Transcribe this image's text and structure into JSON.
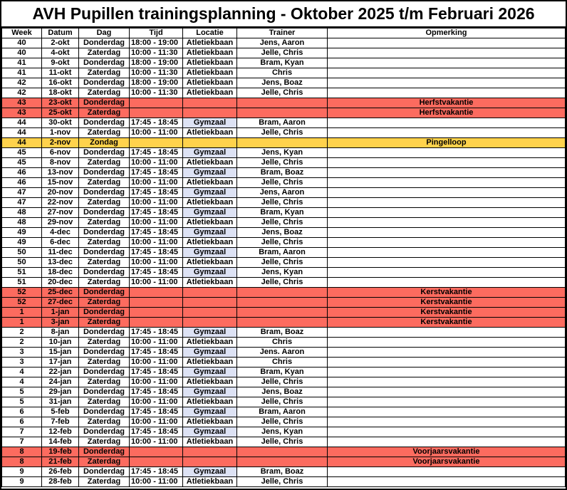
{
  "title": "AVH Pupillen trainingsplanning - Oktober 2025 t/m Februari 2026",
  "columns": [
    "Week",
    "Datum",
    "Dag",
    "Tijd",
    "Locatie",
    "Trainer",
    "Opmerking"
  ],
  "colors": {
    "vacation_red": "#FC6B5F",
    "event_yellow": "#FFD24C",
    "gymzaal_highlight": "#DDE2F4",
    "grid_border": "#000000"
  },
  "rows": [
    {
      "week": "40",
      "datum": "2-okt",
      "dag": "Donderdag",
      "tijd": "18:00 - 19:00",
      "locatie": "Atletiekbaan",
      "trainer": "Jens, Aaron",
      "opmerking": "",
      "type": "normal"
    },
    {
      "week": "40",
      "datum": "4-okt",
      "dag": "Zaterdag",
      "tijd": "10:00 - 11:30",
      "locatie": "Atletiekbaan",
      "trainer": "Jelle, Chris",
      "opmerking": "",
      "type": "normal"
    },
    {
      "week": "41",
      "datum": "9-okt",
      "dag": "Donderdag",
      "tijd": "18:00 - 19:00",
      "locatie": "Atletiekbaan",
      "trainer": "Bram, Kyan",
      "opmerking": "",
      "type": "normal"
    },
    {
      "week": "41",
      "datum": "11-okt",
      "dag": "Zaterdag",
      "tijd": "10:00 - 11:30",
      "locatie": "Atletiekbaan",
      "trainer": "Chris",
      "opmerking": "",
      "type": "normal"
    },
    {
      "week": "42",
      "datum": "16-okt",
      "dag": "Donderdag",
      "tijd": "18:00 - 19:00",
      "locatie": "Atletiekbaan",
      "trainer": "Jens, Boaz",
      "opmerking": "",
      "type": "normal"
    },
    {
      "week": "42",
      "datum": "18-okt",
      "dag": "Zaterdag",
      "tijd": "10:00 - 11:30",
      "locatie": "Atletiekbaan",
      "trainer": "Jelle, Chris",
      "opmerking": "",
      "type": "normal"
    },
    {
      "week": "43",
      "datum": "23-okt",
      "dag": "Donderdag",
      "tijd": "",
      "locatie": "",
      "trainer": "",
      "opmerking": "Herfstvakantie",
      "type": "vacation"
    },
    {
      "week": "43",
      "datum": "25-okt",
      "dag": "Zaterdag",
      "tijd": "",
      "locatie": "",
      "trainer": "",
      "opmerking": "Herfstvakantie",
      "type": "vacation"
    },
    {
      "week": "44",
      "datum": "30-okt",
      "dag": "Donderdag",
      "tijd": "17:45 - 18:45",
      "locatie": "Gymzaal",
      "trainer": "Bram, Aaron",
      "opmerking": "",
      "type": "normal"
    },
    {
      "week": "44",
      "datum": "1-nov",
      "dag": "Zaterdag",
      "tijd": "10:00 - 11:00",
      "locatie": "Atletiekbaan",
      "trainer": "Jelle, Chris",
      "opmerking": "",
      "type": "normal"
    },
    {
      "week": "44",
      "datum": "2-nov",
      "dag": "Zondag",
      "tijd": "",
      "locatie": "",
      "trainer": "",
      "opmerking": "Pingelloop",
      "type": "event"
    },
    {
      "week": "45",
      "datum": "6-nov",
      "dag": "Donderdag",
      "tijd": "17:45 - 18:45",
      "locatie": "Gymzaal",
      "trainer": "Jens, Kyan",
      "opmerking": "",
      "type": "normal"
    },
    {
      "week": "45",
      "datum": "8-nov",
      "dag": "Zaterdag",
      "tijd": "10:00 - 11:00",
      "locatie": "Atletiekbaan",
      "trainer": "Jelle, Chris",
      "opmerking": "",
      "type": "normal"
    },
    {
      "week": "46",
      "datum": "13-nov",
      "dag": "Donderdag",
      "tijd": "17:45 - 18:45",
      "locatie": "Gymzaal",
      "trainer": "Bram, Boaz",
      "opmerking": "",
      "type": "normal"
    },
    {
      "week": "46",
      "datum": "15-nov",
      "dag": "Zaterdag",
      "tijd": "10:00 - 11:00",
      "locatie": "Atletiekbaan",
      "trainer": "Jelle, Chris",
      "opmerking": "",
      "type": "normal"
    },
    {
      "week": "47",
      "datum": "20-nov",
      "dag": "Donderdag",
      "tijd": "17:45 - 18:45",
      "locatie": "Gymzaal",
      "trainer": "Jens, Aaron",
      "opmerking": "",
      "type": "normal"
    },
    {
      "week": "47",
      "datum": "22-nov",
      "dag": "Zaterdag",
      "tijd": "10:00 - 11:00",
      "locatie": "Atletiekbaan",
      "trainer": "Jelle, Chris",
      "opmerking": "",
      "type": "normal"
    },
    {
      "week": "48",
      "datum": "27-nov",
      "dag": "Donderdag",
      "tijd": "17:45 - 18:45",
      "locatie": "Gymzaal",
      "trainer": "Bram, Kyan",
      "opmerking": "",
      "type": "normal"
    },
    {
      "week": "48",
      "datum": "29-nov",
      "dag": "Zaterdag",
      "tijd": "10:00 - 11:00",
      "locatie": "Atletiekbaan",
      "trainer": "Jelle, Chris",
      "opmerking": "",
      "type": "normal"
    },
    {
      "week": "49",
      "datum": "4-dec",
      "dag": "Donderdag",
      "tijd": "17:45 - 18:45",
      "locatie": "Gymzaal",
      "trainer": "Jens, Boaz",
      "opmerking": "",
      "type": "normal"
    },
    {
      "week": "49",
      "datum": "6-dec",
      "dag": "Zaterdag",
      "tijd": "10:00 - 11:00",
      "locatie": "Atletiekbaan",
      "trainer": "Jelle, Chris",
      "opmerking": "",
      "type": "normal"
    },
    {
      "week": "50",
      "datum": "11-dec",
      "dag": "Donderdag",
      "tijd": "17:45 - 18:45",
      "locatie": "Gymzaal",
      "trainer": "Bram, Aaron",
      "opmerking": "",
      "type": "normal"
    },
    {
      "week": "50",
      "datum": "13-dec",
      "dag": "Zaterdag",
      "tijd": "10:00 - 11:00",
      "locatie": "Atletiekbaan",
      "trainer": "Jelle, Chris",
      "opmerking": "",
      "type": "normal"
    },
    {
      "week": "51",
      "datum": "18-dec",
      "dag": "Donderdag",
      "tijd": "17:45 - 18:45",
      "locatie": "Gymzaal",
      "trainer": "Jens, Kyan",
      "opmerking": "",
      "type": "normal"
    },
    {
      "week": "51",
      "datum": "20-dec",
      "dag": "Zaterdag",
      "tijd": "10:00 - 11:00",
      "locatie": "Atletiekbaan",
      "trainer": "Jelle, Chris",
      "opmerking": "",
      "type": "normal"
    },
    {
      "week": "52",
      "datum": "25-dec",
      "dag": "Donderdag",
      "tijd": "",
      "locatie": "",
      "trainer": "",
      "opmerking": "Kerstvakantie",
      "type": "vacation"
    },
    {
      "week": "52",
      "datum": "27-dec",
      "dag": "Zaterdag",
      "tijd": "",
      "locatie": "",
      "trainer": "",
      "opmerking": "Kerstvakantie",
      "type": "vacation"
    },
    {
      "week": "1",
      "datum": "1-jan",
      "dag": "Donderdag",
      "tijd": "",
      "locatie": "",
      "trainer": "",
      "opmerking": "Kerstvakantie",
      "type": "vacation"
    },
    {
      "week": "1",
      "datum": "3-jan",
      "dag": "Zaterdag",
      "tijd": "",
      "locatie": "",
      "trainer": "",
      "opmerking": "Kerstvakantie",
      "type": "vacation"
    },
    {
      "week": "2",
      "datum": "8-jan",
      "dag": "Donderdag",
      "tijd": "17:45 - 18:45",
      "locatie": "Gymzaal",
      "trainer": "Bram, Boaz",
      "opmerking": "",
      "type": "normal"
    },
    {
      "week": "2",
      "datum": "10-jan",
      "dag": "Zaterdag",
      "tijd": "10:00 - 11:00",
      "locatie": "Atletiekbaan",
      "trainer": "Chris",
      "opmerking": "",
      "type": "normal"
    },
    {
      "week": "3",
      "datum": "15-jan",
      "dag": "Donderdag",
      "tijd": "17:45 - 18:45",
      "locatie": "Gymzaal",
      "trainer": "Jens. Aaron",
      "opmerking": "",
      "type": "normal"
    },
    {
      "week": "3",
      "datum": "17-jan",
      "dag": "Zaterdag",
      "tijd": "10:00 - 11:00",
      "locatie": "Atletiekbaan",
      "trainer": "Chris",
      "opmerking": "",
      "type": "normal"
    },
    {
      "week": "4",
      "datum": "22-jan",
      "dag": "Donderdag",
      "tijd": "17:45 - 18:45",
      "locatie": "Gymzaal",
      "trainer": "Bram, Kyan",
      "opmerking": "",
      "type": "normal"
    },
    {
      "week": "4",
      "datum": "24-jan",
      "dag": "Zaterdag",
      "tijd": "10:00 - 11:00",
      "locatie": "Atletiekbaan",
      "trainer": "Jelle, Chris",
      "opmerking": "",
      "type": "normal"
    },
    {
      "week": "5",
      "datum": "29-jan",
      "dag": "Donderdag",
      "tijd": "17:45 - 18:45",
      "locatie": "Gymzaal",
      "trainer": "Jens, Boaz",
      "opmerking": "",
      "type": "normal"
    },
    {
      "week": "5",
      "datum": "31-jan",
      "dag": "Zaterdag",
      "tijd": "10:00 - 11:00",
      "locatie": "Atletiekbaan",
      "trainer": "Jelle, Chris",
      "opmerking": "",
      "type": "normal"
    },
    {
      "week": "6",
      "datum": "5-feb",
      "dag": "Donderdag",
      "tijd": "17:45 - 18:45",
      "locatie": "Gymzaal",
      "trainer": "Bram, Aaron",
      "opmerking": "",
      "type": "normal"
    },
    {
      "week": "6",
      "datum": "7-feb",
      "dag": "Zaterdag",
      "tijd": "10:00 - 11:00",
      "locatie": "Atletiekbaan",
      "trainer": "Jelle, Chris",
      "opmerking": "",
      "type": "normal"
    },
    {
      "week": "7",
      "datum": "12-feb",
      "dag": "Donderdag",
      "tijd": "17:45 - 18:45",
      "locatie": "Gymzaal",
      "trainer": "Jens, Kyan",
      "opmerking": "",
      "type": "normal"
    },
    {
      "week": "7",
      "datum": "14-feb",
      "dag": "Zaterdag",
      "tijd": "10:00 - 11:00",
      "locatie": "Atletiekbaan",
      "trainer": "Jelle, Chris",
      "opmerking": "",
      "type": "normal"
    },
    {
      "week": "8",
      "datum": "19-feb",
      "dag": "Donderdag",
      "tijd": "",
      "locatie": "",
      "trainer": "",
      "opmerking": "Voorjaarsvakantie",
      "type": "vacation"
    },
    {
      "week": "8",
      "datum": "21-feb",
      "dag": "Zaterdag",
      "tijd": "",
      "locatie": "",
      "trainer": "",
      "opmerking": "Voorjaarsvakantie",
      "type": "vacation"
    },
    {
      "week": "9",
      "datum": "26-feb",
      "dag": "Donderdag",
      "tijd": "17:45 - 18:45",
      "locatie": "Gymzaal",
      "trainer": "Bram, Boaz",
      "opmerking": "",
      "type": "normal"
    },
    {
      "week": "9",
      "datum": "28-feb",
      "dag": "Zaterdag",
      "tijd": "10:00 - 11:00",
      "locatie": "Atletiekbaan",
      "trainer": "Jelle, Chris",
      "opmerking": "",
      "type": "normal"
    }
  ]
}
